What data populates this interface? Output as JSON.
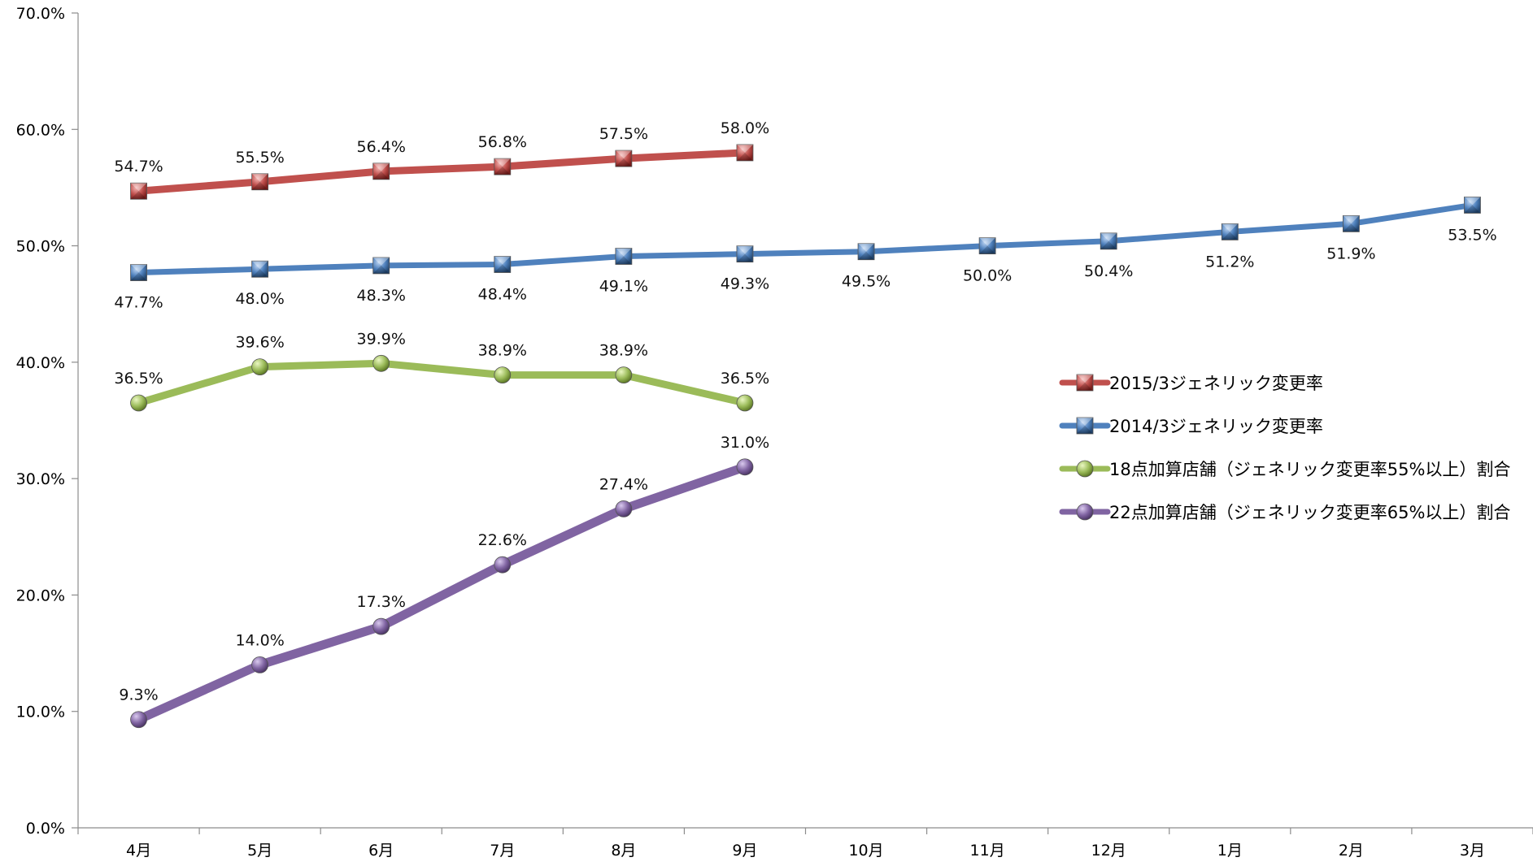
{
  "chart_data": {
    "type": "line",
    "categories": [
      "4月",
      "5月",
      "6月",
      "7月",
      "8月",
      "9月",
      "10月",
      "11月",
      "12月",
      "1月",
      "2月",
      "3月"
    ],
    "ylim": [
      0,
      70
    ],
    "y_ticks": [
      "0.0%",
      "10.0%",
      "20.0%",
      "30.0%",
      "40.0%",
      "50.0%",
      "60.0%",
      "70.0%"
    ],
    "title": "",
    "xlabel": "",
    "ylabel": "",
    "grid": false,
    "legend_position": "right",
    "series": [
      {
        "name": "2015/3ジェネリック変更率",
        "color": "#c0504d",
        "marker": "square",
        "label_position": "above",
        "values": [
          54.7,
          55.5,
          56.4,
          56.8,
          57.5,
          58.0,
          null,
          null,
          null,
          null,
          null,
          null
        ],
        "labels": [
          "54.7%",
          "55.5%",
          "56.4%",
          "56.8%",
          "57.5%",
          "58.0%",
          "",
          "",
          "",
          "",
          "",
          ""
        ]
      },
      {
        "name": "2014/3ジェネリック変更率",
        "color": "#4f81bd",
        "marker": "square",
        "label_position": "below",
        "values": [
          47.7,
          48.0,
          48.3,
          48.4,
          49.1,
          49.3,
          49.5,
          50.0,
          50.4,
          51.2,
          51.9,
          53.5
        ],
        "labels": [
          "47.7%",
          "48.0%",
          "48.3%",
          "48.4%",
          "49.1%",
          "49.3%",
          "49.5%",
          "50.0%",
          "50.4%",
          "51.2%",
          "51.9%",
          "53.5%"
        ]
      },
      {
        "name": "18点加算店舗（ジェネリック変更率55%以上）割合",
        "color": "#9bbb59",
        "marker": "circle",
        "label_position": "above",
        "values": [
          36.5,
          39.6,
          39.9,
          38.9,
          38.9,
          36.5,
          null,
          null,
          null,
          null,
          null,
          null
        ],
        "labels": [
          "36.5%",
          "39.6%",
          "39.9%",
          "38.9%",
          "38.9%",
          "36.5%",
          "",
          "",
          "",
          "",
          "",
          ""
        ]
      },
      {
        "name": "22点加算店舗（ジェネリック変更率65%以上）割合",
        "color": "#8064a2",
        "marker": "circle",
        "label_position": "above",
        "values": [
          9.3,
          14.0,
          17.3,
          22.6,
          27.4,
          31.0,
          null,
          null,
          null,
          null,
          null,
          null
        ],
        "labels": [
          "9.3%",
          "14.0%",
          "17.3%",
          "22.6%",
          "27.4%",
          "31.0%",
          "",
          "",
          "",
          "",
          "",
          ""
        ]
      }
    ]
  }
}
